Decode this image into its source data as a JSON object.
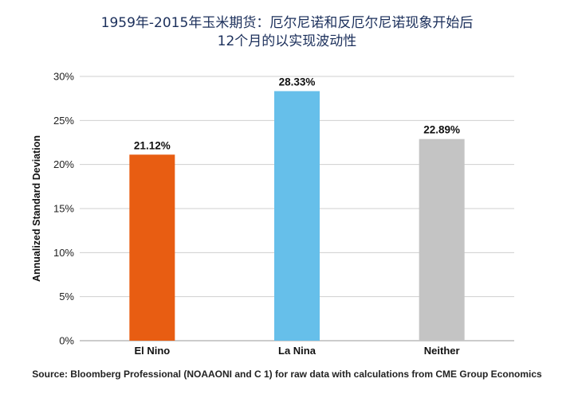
{
  "title_line1": "1959年-2015年玉米期货：厄尔尼诺和反厄尔尼诺现象开始后",
  "title_line2": "12个月的以实现波动性",
  "source": "Source: Bloomberg Professional (NOAAONI and C 1) for raw data with calculations from CME Group Economics",
  "chart_data": {
    "type": "bar",
    "title": "1959年-2015年玉米期货：厄尔尼诺和反厄尔尼诺现象开始后 12个月的以实现波动性",
    "xlabel": "",
    "ylabel": "Annualized Standard Deviation",
    "categories": [
      "El Nino",
      "La Nina",
      "Neither"
    ],
    "values": [
      21.12,
      28.33,
      22.89
    ],
    "value_labels": [
      "21.12%",
      "28.33%",
      "22.89%"
    ],
    "colors": [
      "#e85d12",
      "#66bfea",
      "#c4c4c4"
    ],
    "ylim": [
      0,
      30
    ],
    "yticks": [
      0,
      5,
      10,
      15,
      20,
      25,
      30
    ],
    "ytick_labels": [
      "0%",
      "5%",
      "10%",
      "15%",
      "20%",
      "25%",
      "30%"
    ],
    "grid": true,
    "legend": "none"
  }
}
